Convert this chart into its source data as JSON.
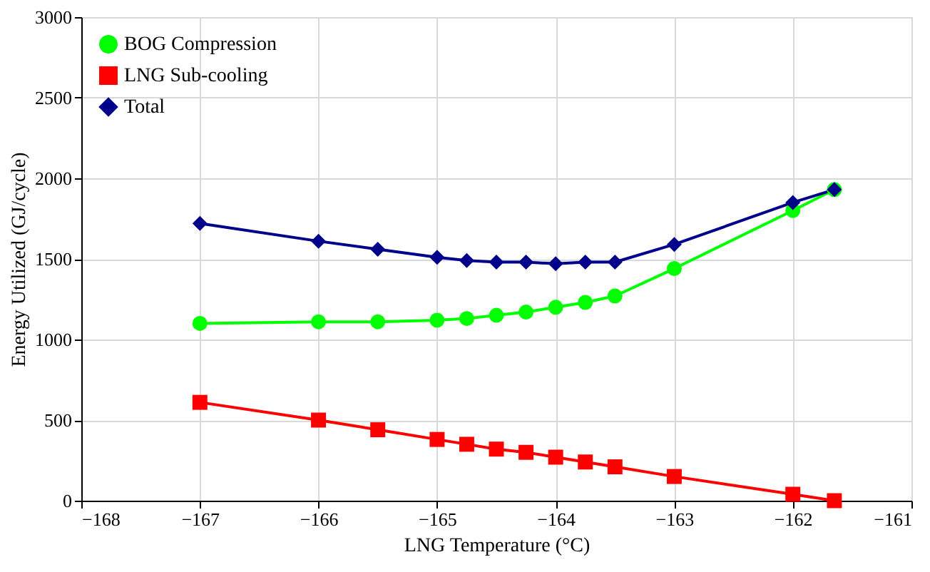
{
  "chart_data": {
    "type": "line",
    "xlabel": "LNG Temperature (°C)",
    "ylabel": "Energy Utilized  (GJ/cycle)",
    "x": [
      -167,
      -166,
      -165.5,
      -165,
      -164.75,
      -164.5,
      -164.25,
      -164,
      -163.75,
      -163.5,
      -163,
      -162,
      -161.65
    ],
    "series": [
      {
        "name": "BOG Compression",
        "color": "#00ff00",
        "marker": "circle",
        "values": [
          1100,
          1110,
          1110,
          1120,
          1130,
          1150,
          1170,
          1200,
          1230,
          1270,
          1440,
          1800,
          1930
        ]
      },
      {
        "name": "LNG Sub-cooling",
        "color": "#ff0000",
        "marker": "square",
        "values": [
          610,
          500,
          440,
          380,
          350,
          320,
          300,
          270,
          240,
          210,
          150,
          40,
          0
        ]
      },
      {
        "name": "Total",
        "color": "#00008b",
        "marker": "diamond",
        "values": [
          1720,
          1610,
          1560,
          1510,
          1490,
          1480,
          1480,
          1470,
          1480,
          1480,
          1590,
          1850,
          1930
        ]
      }
    ],
    "xlim": [
      -168,
      -161
    ],
    "xticks": [
      -168,
      -167,
      -166,
      -165,
      -164,
      -163,
      -162,
      -161
    ],
    "ylim": [
      0,
      3000
    ],
    "yticks": [
      0,
      500,
      1000,
      1500,
      2000,
      2500,
      3000
    ],
    "grid": true,
    "legend": "top left",
    "line_style": "solid"
  }
}
